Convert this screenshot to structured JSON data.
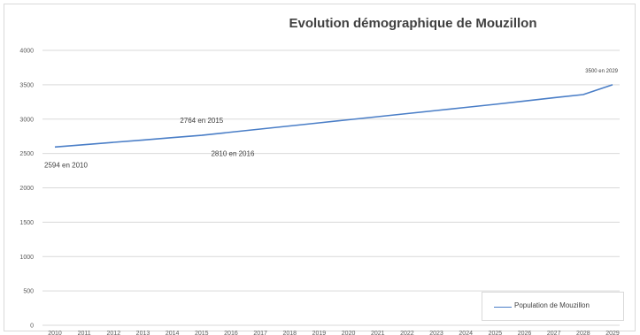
{
  "chart_data": {
    "type": "line",
    "title": "Evolution démographique de Mouzillon",
    "xlabel": "",
    "ylabel": "",
    "x": [
      2010,
      2011,
      2012,
      2013,
      2014,
      2015,
      2016,
      2017,
      2018,
      2019,
      2020,
      2021,
      2022,
      2023,
      2024,
      2025,
      2026,
      2027,
      2028,
      2029
    ],
    "series": [
      {
        "name": "Population de Mouzillon",
        "color": "#4a7ec7",
        "values": [
          2594,
          2628,
          2662,
          2696,
          2730,
          2764,
          2810,
          2855,
          2900,
          2945,
          2990,
          3035,
          3080,
          3125,
          3170,
          3216,
          3263,
          3310,
          3357,
          3500
        ]
      }
    ],
    "ylim": [
      0,
      4000
    ],
    "yticks": [
      "0",
      "500",
      "1000",
      "1500",
      "2000",
      "2500",
      "3000",
      "3500",
      "4000"
    ],
    "grid": true,
    "legend_position": "bottom-right",
    "annotations": [
      {
        "text": "2594 en 2010",
        "x": 2010,
        "y": 2594,
        "side": "below"
      },
      {
        "text": "2764  en 2015",
        "x": 2015,
        "y": 2764,
        "side": "above"
      },
      {
        "text": "2810 en 2016",
        "x": 2016,
        "y": 2810,
        "side": "below"
      },
      {
        "text": "3500 en 2029",
        "x": 2029,
        "y": 3500,
        "side": "above"
      }
    ]
  }
}
